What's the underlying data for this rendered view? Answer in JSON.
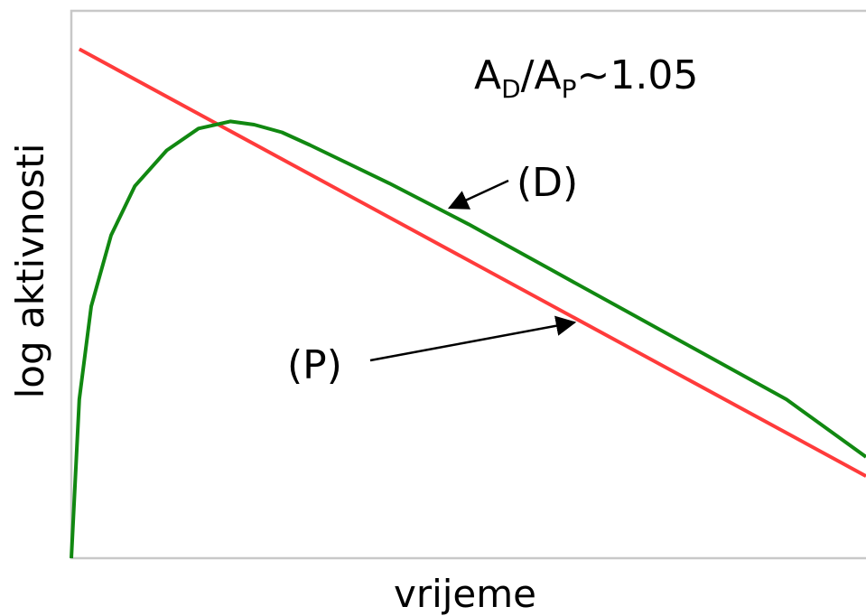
{
  "chart_data": {
    "type": "line",
    "xlabel": "vrijeme",
    "ylabel": "log aktivnosti",
    "xlim": [
      0,
      10
    ],
    "ylim": [
      0,
      10
    ],
    "grid": false,
    "colors": {
      "parent": "#ff3b3b",
      "daughter": "#118811",
      "axis": "#c8c8c8"
    },
    "series": [
      {
        "name": "(P)",
        "x": [
          0.1,
          10
        ],
        "y": [
          9.3,
          1.5
        ]
      },
      {
        "name": "(D)",
        "x": [
          0,
          0.1,
          0.25,
          0.5,
          0.8,
          1.2,
          1.6,
          2.0,
          2.3,
          2.65,
          3.0,
          4.0,
          5.0,
          6.0,
          7.0,
          8.0,
          9.0,
          10.0
        ],
        "y": [
          0,
          2.9,
          4.6,
          5.9,
          6.8,
          7.45,
          7.85,
          7.98,
          7.92,
          7.78,
          7.55,
          6.85,
          6.1,
          5.3,
          4.5,
          3.7,
          2.9,
          1.85
        ]
      }
    ],
    "annotations": {
      "ratio": {
        "base1": "A",
        "sub1": "D",
        "slash": "/",
        "base2": "A",
        "sub2": "P",
        "tail": "~1.05"
      },
      "d_label": "(D)",
      "p_label": "(P)"
    }
  }
}
